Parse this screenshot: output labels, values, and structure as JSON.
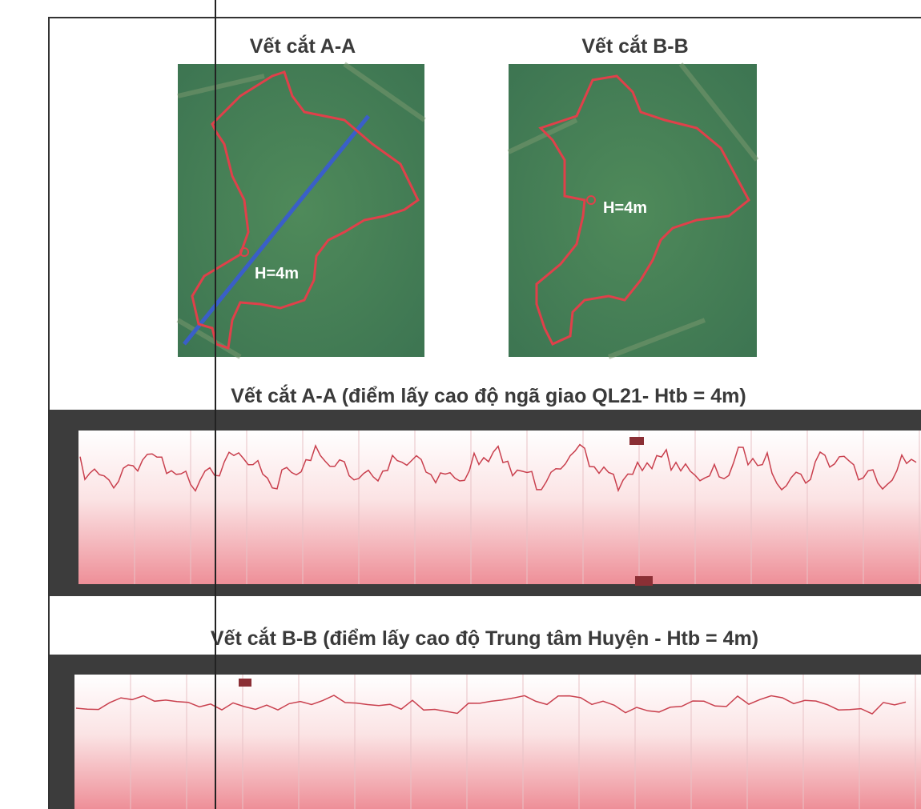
{
  "sections": [
    {
      "title": "Vết cắt A-A",
      "label": "H=4m"
    },
    {
      "title": "Vết cắt B-B",
      "label": "H=4m"
    }
  ],
  "profiles": [
    {
      "caption": "Vết cắt A-A (điểm lấy cao độ ngã giao QL21- Htb = 4m)"
    },
    {
      "caption": "Vết cắt B-B (điểm lấy cao độ Trung tâm Huyện - Htb = 4m)"
    }
  ]
}
